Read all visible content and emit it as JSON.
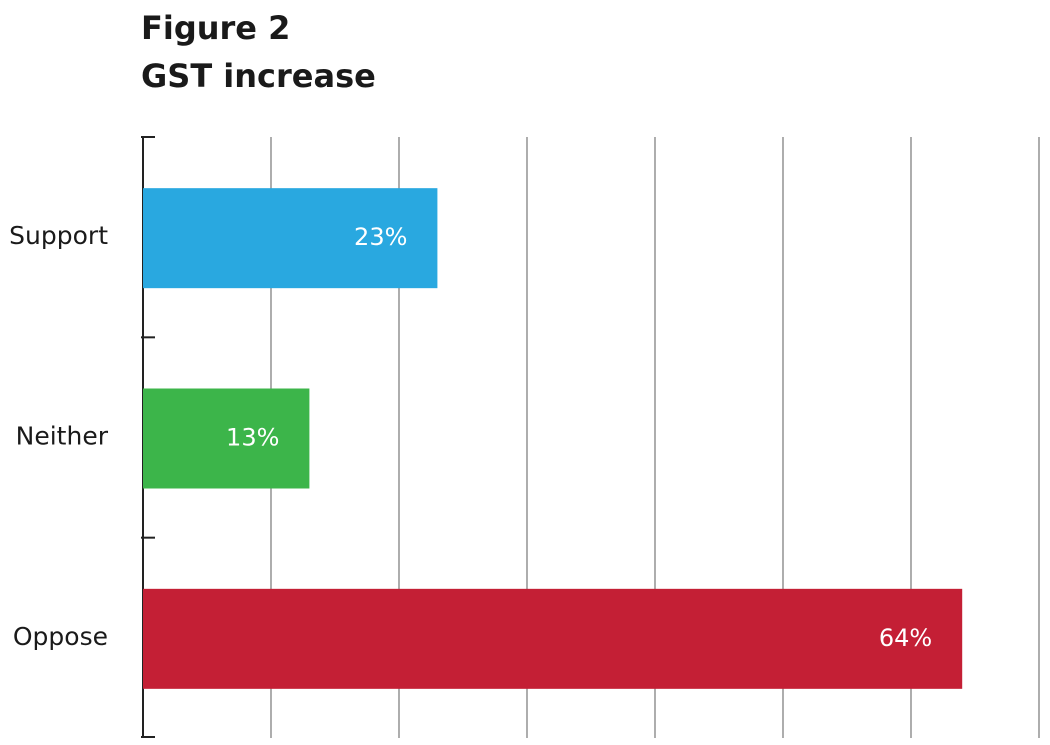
{
  "chart_data": {
    "type": "bar",
    "orientation": "horizontal",
    "title": "Figure 2",
    "subtitle": "GST increase",
    "categories": [
      "Support",
      "Neither",
      "Oppose"
    ],
    "values": [
      23,
      13,
      64
    ],
    "value_labels": [
      "23%",
      "13%",
      "64%"
    ],
    "colors": [
      "#29a8e0",
      "#3cb54a",
      "#c41f35"
    ],
    "xlim": [
      0,
      70
    ],
    "xticks": [
      0,
      10,
      20,
      30,
      40,
      50,
      60,
      70
    ],
    "grid": true
  }
}
